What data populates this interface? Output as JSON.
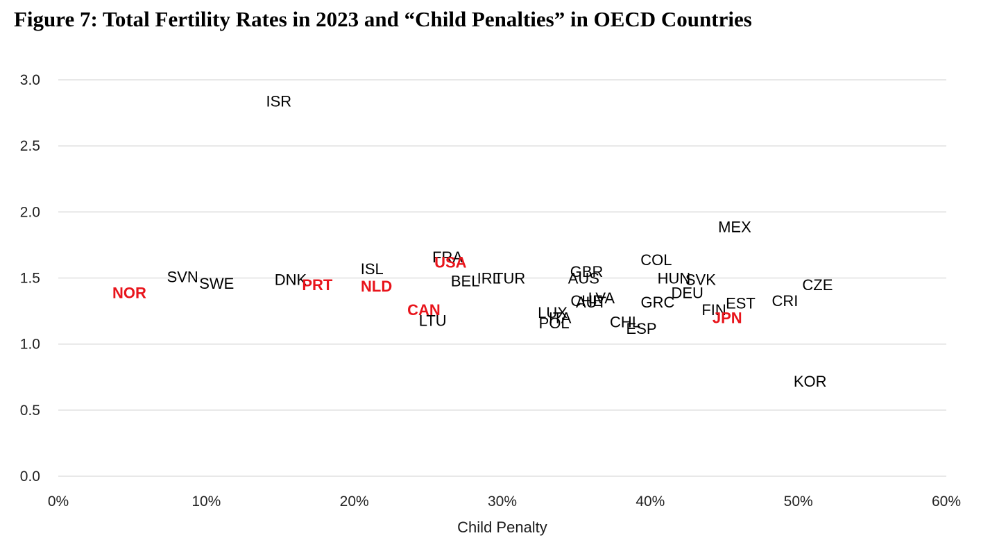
{
  "figure_title": "Figure 7: Total Fertility Rates in 2023 and “Child Penalties” in OECD Countries",
  "chart_data": {
    "type": "scatter",
    "title": "",
    "xlabel": "Child Penalty",
    "ylabel": "",
    "xlim": [
      0,
      0.6
    ],
    "ylim": [
      0,
      3.0
    ],
    "x_ticks": [
      0,
      0.1,
      0.2,
      0.3,
      0.4,
      0.5,
      0.6
    ],
    "x_tick_labels": [
      "0%",
      "10%",
      "20%",
      "30%",
      "40%",
      "50%",
      "60%"
    ],
    "y_ticks": [
      0,
      0.5,
      1.0,
      1.5,
      2.0,
      2.5,
      3.0
    ],
    "y_tick_labels": [
      "0.0",
      "0.5",
      "1.0",
      "1.5",
      "2.0",
      "2.5",
      "3.0"
    ],
    "grid": "horizontal",
    "marker": "country code labels",
    "colors": {
      "default": "#000000",
      "highlight": "#e8141b",
      "grid": "#d9d9d9"
    },
    "points": [
      {
        "label": "ISR",
        "x": 0.149,
        "y": 2.84,
        "highlight": false
      },
      {
        "label": "MEX",
        "x": 0.457,
        "y": 1.89,
        "highlight": false
      },
      {
        "label": "COL",
        "x": 0.404,
        "y": 1.64,
        "highlight": false
      },
      {
        "label": "FRA",
        "x": 0.263,
        "y": 1.66,
        "highlight": false
      },
      {
        "label": "USA",
        "x": 0.265,
        "y": 1.62,
        "highlight": true
      },
      {
        "label": "ISL",
        "x": 0.212,
        "y": 1.57,
        "highlight": false
      },
      {
        "label": "GBR",
        "x": 0.357,
        "y": 1.55,
        "highlight": false
      },
      {
        "label": "AUS",
        "x": 0.355,
        "y": 1.5,
        "highlight": false
      },
      {
        "label": "SVN",
        "x": 0.084,
        "y": 1.51,
        "highlight": false
      },
      {
        "label": "SWE",
        "x": 0.107,
        "y": 1.46,
        "highlight": false
      },
      {
        "label": "NOR",
        "x": 0.048,
        "y": 1.39,
        "highlight": true
      },
      {
        "label": "DNK",
        "x": 0.157,
        "y": 1.49,
        "highlight": false
      },
      {
        "label": "PRT",
        "x": 0.175,
        "y": 1.45,
        "highlight": true
      },
      {
        "label": "NLD",
        "x": 0.215,
        "y": 1.44,
        "highlight": true
      },
      {
        "label": "BEL",
        "x": 0.275,
        "y": 1.48,
        "highlight": false
      },
      {
        "label": "IRL",
        "x": 0.291,
        "y": 1.5,
        "highlight": false
      },
      {
        "label": "TUR",
        "x": 0.305,
        "y": 1.5,
        "highlight": false
      },
      {
        "label": "HUN",
        "x": 0.416,
        "y": 1.5,
        "highlight": false
      },
      {
        "label": "SVK",
        "x": 0.434,
        "y": 1.49,
        "highlight": false
      },
      {
        "label": "DEU",
        "x": 0.425,
        "y": 1.39,
        "highlight": false
      },
      {
        "label": "CZE",
        "x": 0.513,
        "y": 1.45,
        "highlight": false
      },
      {
        "label": "CRI",
        "x": 0.491,
        "y": 1.33,
        "highlight": false
      },
      {
        "label": "EST",
        "x": 0.461,
        "y": 1.31,
        "highlight": false
      },
      {
        "label": "FIN",
        "x": 0.443,
        "y": 1.26,
        "highlight": false
      },
      {
        "label": "JPN",
        "x": 0.452,
        "y": 1.2,
        "highlight": true
      },
      {
        "label": "GRC",
        "x": 0.405,
        "y": 1.32,
        "highlight": false
      },
      {
        "label": "LVA",
        "x": 0.367,
        "y": 1.35,
        "highlight": false
      },
      {
        "label": "CHE",
        "x": 0.357,
        "y": 1.33,
        "highlight": false
      },
      {
        "label": "AUT",
        "x": 0.36,
        "y": 1.32,
        "highlight": false
      },
      {
        "label": "CAN",
        "x": 0.247,
        "y": 1.26,
        "highlight": true
      },
      {
        "label": "LTU",
        "x": 0.253,
        "y": 1.18,
        "highlight": false
      },
      {
        "label": "LUX",
        "x": 0.334,
        "y": 1.24,
        "highlight": false
      },
      {
        "label": "ITA",
        "x": 0.339,
        "y": 1.2,
        "highlight": false
      },
      {
        "label": "POL",
        "x": 0.335,
        "y": 1.16,
        "highlight": false
      },
      {
        "label": "CHL",
        "x": 0.383,
        "y": 1.17,
        "highlight": false
      },
      {
        "label": "ESP",
        "x": 0.394,
        "y": 1.12,
        "highlight": false
      },
      {
        "label": "KOR",
        "x": 0.508,
        "y": 0.72,
        "highlight": false
      }
    ]
  }
}
